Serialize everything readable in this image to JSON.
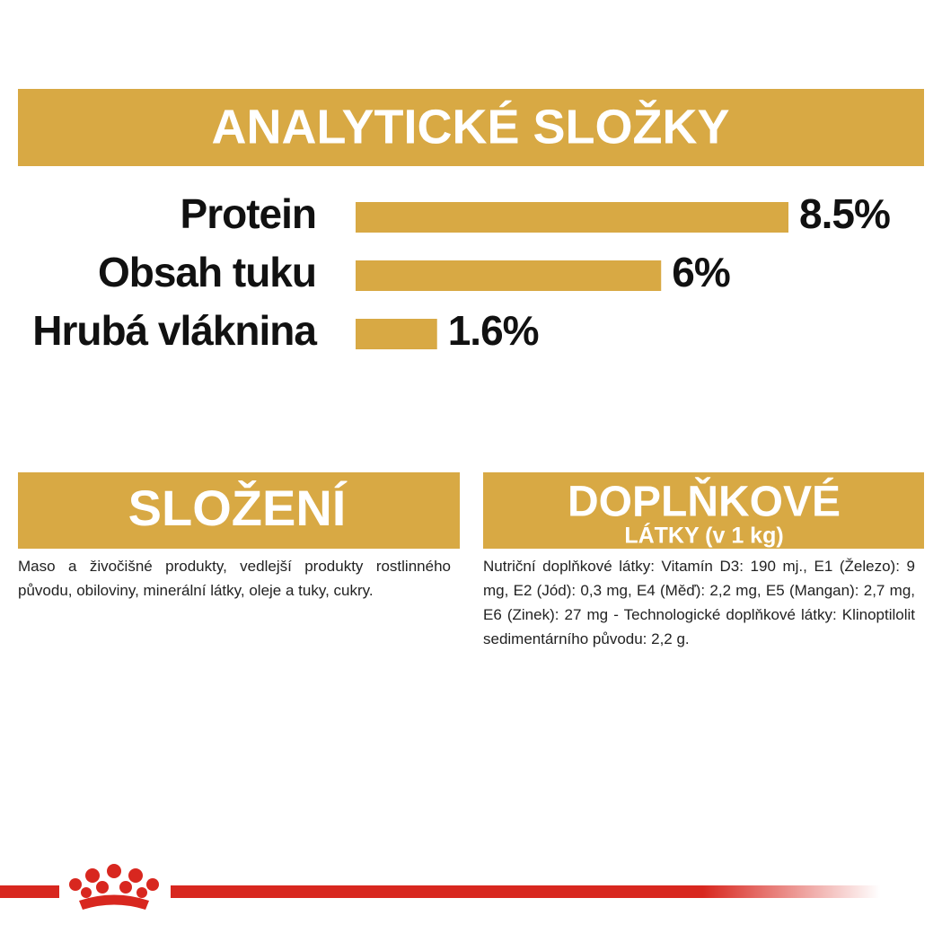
{
  "header": {
    "title": "ANALYTICKÉ SLOŽKY"
  },
  "chart_data": {
    "type": "bar",
    "orientation": "horizontal",
    "categories": [
      "Protein",
      "Obsah tuku",
      "Hrubá vláknina"
    ],
    "values": [
      8.5,
      6,
      1.6
    ],
    "value_labels": [
      "8.5%",
      "6%",
      "1.6%"
    ],
    "color": "#d8a944"
  },
  "sections": [
    {
      "title": "SLOŽENÍ",
      "text": "Maso a živočišné produkty, vedlejší produkty rostlinného původu, obiloviny, minerální látky, oleje a tuky, cukry."
    },
    {
      "title": "DOPLŇKOVÉ",
      "subtitle": "LÁTKY (v 1 kg)",
      "text": "Nutriční doplňkové látky: Vitamín D3: 190 mj., E1 (Železo): 9 mg, E2 (Jód): 0,3 mg, E4 (Měď): 2,2 mg, E5 (Mangan): 2,7 mg, E6 (Zinek): 27 mg - Technologické doplňkové látky: Klinoptilolit sedimentárního původu: 2,2 g."
    }
  ]
}
